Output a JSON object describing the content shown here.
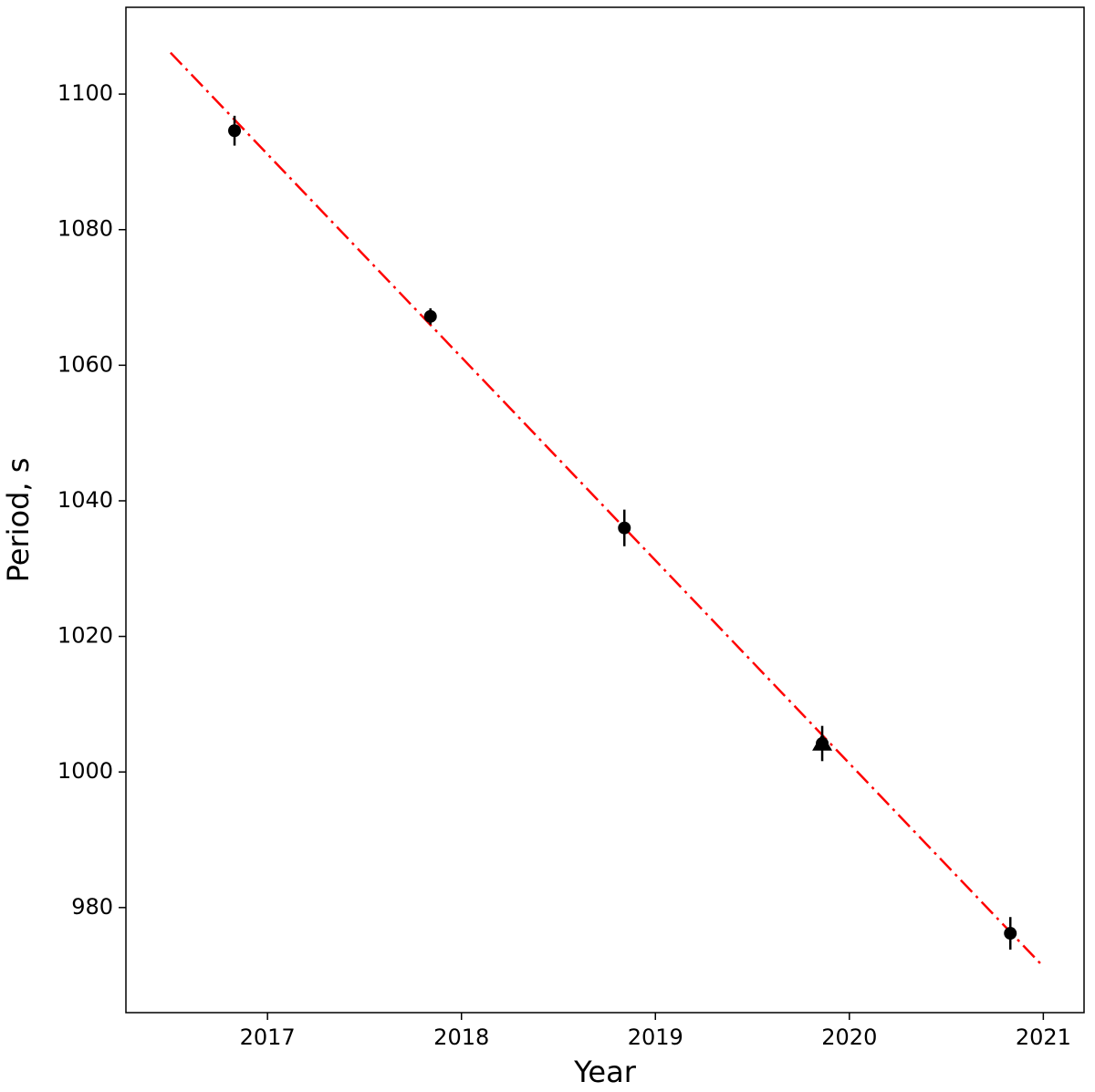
{
  "chart_data": {
    "type": "scatter",
    "xlabel": "Year",
    "ylabel": "Period, s",
    "xlim": [
      2016.27,
      2021.21
    ],
    "ylim": [
      964.5,
      1112.8
    ],
    "xticks": [
      2017,
      2018,
      2019,
      2020,
      2021
    ],
    "yticks": [
      980,
      1000,
      1020,
      1040,
      1060,
      1080,
      1100
    ],
    "grid": false,
    "series": [
      {
        "marker": "circle",
        "color": "#000000",
        "x": [
          2016.83,
          2017.84,
          2018.84,
          2019.86,
          2020.83
        ],
        "values": [
          1094.6,
          1067.2,
          1036.0,
          1004.2,
          976.2
        ],
        "errors": [
          2.2,
          1.2,
          2.7,
          2.6,
          2.4
        ]
      },
      {
        "marker": "triangle",
        "color": "#000000",
        "x": [
          2019.86
        ],
        "values": [
          1004.2
        ]
      },
      {
        "marker": "line",
        "dash": "dashdot",
        "color": "#ff0000",
        "x": [
          2016.5,
          2021.0
        ],
        "values": [
          1106.1,
          971.3
        ]
      }
    ]
  }
}
